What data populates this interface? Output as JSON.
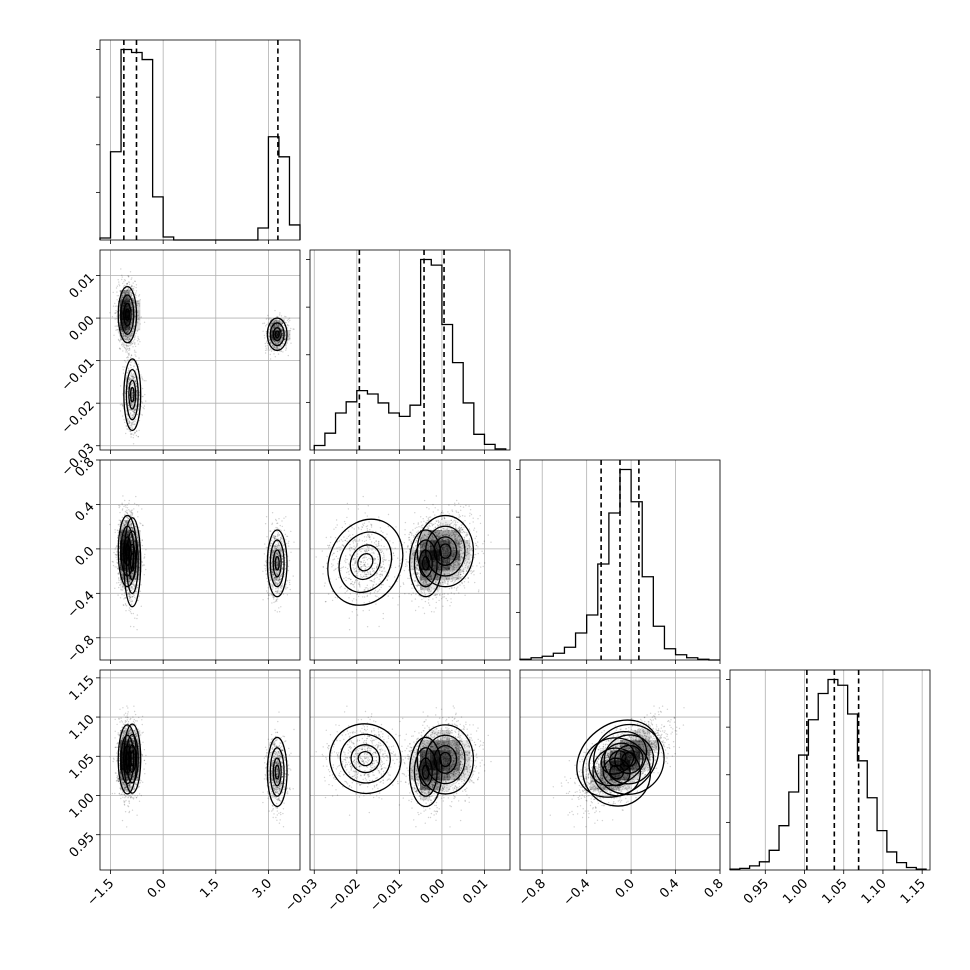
{
  "chart_data": {
    "type": "corner",
    "grid": true,
    "parameters": [
      {
        "range": [
          -1.8,
          3.9
        ],
        "ticks": [
          -1.5,
          0.0,
          1.5,
          3.0
        ],
        "tick_labels": [
          "−1.5",
          "0.0",
          "1.5",
          "3.0"
        ]
      },
      {
        "range": [
          -0.031,
          0.016
        ],
        "ticks": [
          -0.03,
          -0.02,
          -0.01,
          0.0,
          0.01
        ],
        "tick_labels": [
          "−0.03",
          "−0.02",
          "−0.01",
          "0.00",
          "0.01"
        ]
      },
      {
        "range": [
          -1.0,
          0.8
        ],
        "ticks": [
          -0.8,
          -0.4,
          0.0,
          0.4,
          0.8
        ],
        "tick_labels": [
          "−0.8",
          "−0.4",
          "0.0",
          "0.4",
          "0.8"
        ]
      },
      {
        "range": [
          0.905,
          1.16
        ],
        "ticks": [
          0.95,
          1.0,
          1.05,
          1.1,
          1.15
        ],
        "tick_labels": [
          "0.95",
          "1.00",
          "1.05",
          "1.10",
          "1.15"
        ]
      }
    ],
    "marginals": [
      {
        "bins": [
          -1.8,
          -1.5,
          -1.2,
          -0.9,
          -0.6,
          -0.3,
          0.0,
          0.3,
          0.6,
          0.9,
          1.2,
          1.5,
          1.8,
          2.1,
          2.4,
          2.7,
          3.0,
          3.3,
          3.6,
          3.9
        ],
        "counts": [
          2,
          88,
          190,
          187,
          180,
          43,
          3,
          0,
          0,
          0,
          0,
          0,
          0,
          0,
          0,
          12,
          103,
          83,
          15
        ],
        "quantiles": [
          -1.12,
          -0.76,
          3.27
        ]
      },
      {
        "bins": [
          -0.03,
          -0.0275,
          -0.025,
          -0.0225,
          -0.02,
          -0.0175,
          -0.015,
          -0.0125,
          -0.01,
          -0.0075,
          -0.005,
          -0.0025,
          0.0,
          0.0025,
          0.005,
          0.0075,
          0.01,
          0.0125,
          0.015
        ],
        "counts": [
          4,
          15,
          33,
          43,
          53,
          50,
          42,
          33,
          30,
          40,
          170,
          165,
          112,
          78,
          42,
          14,
          5,
          1
        ],
        "quantiles": [
          -0.0194,
          -0.0042,
          0.0005
        ]
      },
      {
        "bins": [
          -1.0,
          -0.9,
          -0.8,
          -0.7,
          -0.6,
          -0.5,
          -0.4,
          -0.3,
          -0.2,
          -0.1,
          0.0,
          0.1,
          0.2,
          0.3,
          0.4,
          0.5,
          0.6,
          0.7,
          0.8
        ],
        "counts": [
          1,
          3,
          5,
          9,
          17,
          36,
          60,
          128,
          196,
          254,
          211,
          111,
          45,
          15,
          7,
          3,
          1,
          0
        ],
        "quantiles": [
          -0.27,
          -0.1,
          0.07
        ]
      },
      {
        "bins": [
          0.905,
          0.9175,
          0.93,
          0.9425,
          0.955,
          0.9675,
          0.98,
          0.9925,
          1.005,
          1.0175,
          1.03,
          1.0425,
          1.055,
          1.0675,
          1.08,
          1.0925,
          1.105,
          1.1175,
          1.13,
          1.1425,
          1.155
        ],
        "counts": [
          1,
          2,
          5,
          10,
          24,
          54,
          95,
          140,
          183,
          215,
          232,
          225,
          190,
          133,
          88,
          48,
          22,
          9,
          3,
          1
        ],
        "quantiles": [
          1.003,
          1.038,
          1.069
        ]
      }
    ],
    "modes": [
      {
        "weight": 0.55,
        "mean": [
          -1.02,
          0.0008,
          -0.02,
          1.046
        ],
        "sd": [
          0.13,
          0.0033,
          0.16,
          0.022
        ]
      },
      {
        "weight": 0.2,
        "mean": [
          -0.88,
          -0.018,
          -0.12,
          1.047
        ],
        "sd": [
          0.12,
          0.0042,
          0.2,
          0.022
        ]
      },
      {
        "weight": 0.25,
        "mean": [
          3.25,
          -0.0038,
          -0.13,
          1.03
        ],
        "sd": [
          0.14,
          0.0019,
          0.15,
          0.022
        ]
      }
    ],
    "correlation_param2_param3": 0.6
  }
}
